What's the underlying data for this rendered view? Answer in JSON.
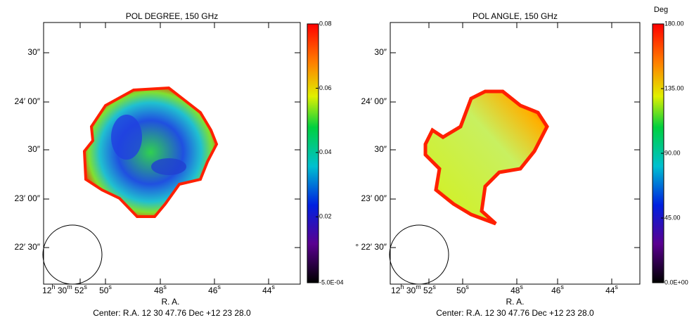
{
  "panels": [
    {
      "title": "POL DEGREE, 150 GHz",
      "dec_labels": [
        "30″",
        "24′ 00″",
        "30″",
        "23′ 00″",
        "22′ 30″"
      ],
      "ra_labels": [
        [
          "12",
          "h",
          " 30",
          "m",
          " 52",
          "s"
        ],
        [
          "50",
          "s"
        ],
        [
          "48",
          "s"
        ],
        [
          "46",
          "s"
        ],
        [
          "44",
          "s"
        ]
      ],
      "xlabel": "R. A.",
      "footer": "Center:  R.A. 12 30 47.76    Dec  +12 23 28.0",
      "colorbar": {
        "ylim": [
          -0.0005,
          0.08
        ],
        "ticks": [
          {
            "value": 0.08,
            "label": "0.08"
          },
          {
            "value": 0.06,
            "label": "0.06"
          },
          {
            "value": 0.04,
            "label": "0.04"
          },
          {
            "value": 0.02,
            "label": "0.02"
          },
          {
            "value": -0.0005,
            "label": "-5.0E-04"
          }
        ]
      }
    },
    {
      "title": "POL ANGLE, 150 GHz",
      "dec_labels": [
        "30″",
        "24′ 00″",
        "30″",
        "23′ 00″",
        "° 22′ 30″"
      ],
      "ra_labels": [
        [
          "12",
          "h",
          " 30",
          "m",
          " 52",
          "s"
        ],
        [
          "50",
          "s"
        ],
        [
          "48",
          "s"
        ],
        [
          "46",
          "s"
        ],
        [
          "44",
          "s"
        ]
      ],
      "xlabel": "R. A.",
      "footer": "Center:  R.A. 12 30 47.76    Dec  +12 23 28.0",
      "colorbar": {
        "unit": "Deg",
        "ylim": [
          0,
          180
        ],
        "ticks": [
          {
            "value": 180,
            "label": "180.00"
          },
          {
            "value": 135,
            "label": "135.00"
          },
          {
            "value": 90,
            "label": "90.00"
          },
          {
            "value": 45,
            "label": "45.00"
          },
          {
            "value": 0,
            "label": "0.0E+00"
          }
        ]
      }
    }
  ]
}
